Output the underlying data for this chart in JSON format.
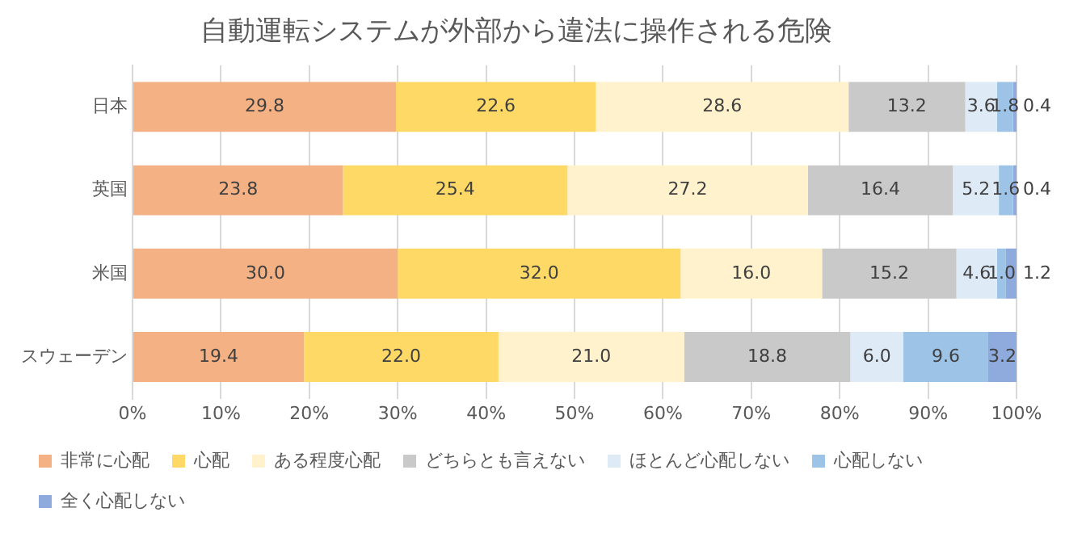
{
  "chart_data": {
    "type": "bar",
    "title": "自動運転システムが外部から違法に操作される危険",
    "orientation": "horizontal",
    "stacked": true,
    "categories": [
      "日本",
      "英国",
      "米国",
      "スウェーデン"
    ],
    "series": [
      {
        "name": "非常に心配",
        "color": "#f4b183",
        "values": [
          29.8,
          23.8,
          30.0,
          19.4
        ],
        "value_labels": [
          "29.8",
          "23.8",
          "30.0",
          "19.4"
        ]
      },
      {
        "name": "心配",
        "color": "#ffd966",
        "values": [
          22.6,
          25.4,
          32.0,
          22.0
        ],
        "value_labels": [
          "22.6",
          "25.4",
          "32.0",
          "22.0"
        ]
      },
      {
        "name": "ある程度心配",
        "color": "#fff2cc",
        "values": [
          28.6,
          27.2,
          16.0,
          21.0
        ],
        "value_labels": [
          "28.6",
          "27.2",
          "16.0",
          "21.0"
        ]
      },
      {
        "name": "どちらとも言えない",
        "color": "#c9c9c9",
        "values": [
          13.2,
          16.4,
          15.2,
          18.8
        ],
        "value_labels": [
          "13.2",
          "16.4",
          "15.2",
          "18.8"
        ]
      },
      {
        "name": "ほとんど心配しない",
        "color": "#deebf7",
        "values": [
          3.6,
          5.2,
          4.6,
          6.0
        ],
        "value_labels": [
          "3.6",
          "5.2",
          "4.6",
          "6.0"
        ]
      },
      {
        "name": "心配しない",
        "color": "#9dc3e6",
        "values": [
          1.8,
          1.6,
          1.0,
          9.6
        ],
        "value_labels": [
          "1.8",
          "1.6",
          "1.0",
          "9.6"
        ]
      },
      {
        "name": "全く心配しない",
        "color": "#8faadc",
        "values": [
          0.4,
          0.4,
          1.2,
          3.2
        ],
        "value_labels": [
          "0.4",
          "0.4",
          "1.2",
          "3.2"
        ]
      }
    ],
    "xlim": [
      0,
      100
    ],
    "xticks": [
      {
        "value": 0,
        "label": "0%"
      },
      {
        "value": 10,
        "label": "10%"
      },
      {
        "value": 20,
        "label": "20%"
      },
      {
        "value": 30,
        "label": "30%"
      },
      {
        "value": 40,
        "label": "40%"
      },
      {
        "value": 50,
        "label": "50%"
      },
      {
        "value": 60,
        "label": "60%"
      },
      {
        "value": 70,
        "label": "70%"
      },
      {
        "value": 80,
        "label": "80%"
      },
      {
        "value": 90,
        "label": "90%"
      },
      {
        "value": 100,
        "label": "100%"
      }
    ],
    "grid": "x",
    "legend": "bottom"
  }
}
